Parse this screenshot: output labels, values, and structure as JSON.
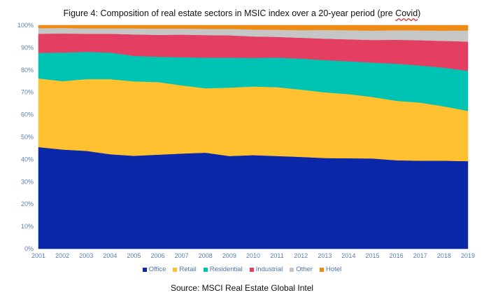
{
  "chart_data": {
    "type": "area",
    "stacked": true,
    "normalized": true,
    "title": "Figure 4: Composition of real estate sectors in MSIC index over a 20-year period (pre Covid)",
    "title_prefix": "Figure 4: Composition of real estate sectors in MSIC index over a 20-year period (pre ",
    "title_underlined": "Covid",
    "title_suffix": ")",
    "xlabel": "",
    "ylabel": "",
    "ylim": [
      0,
      100
    ],
    "y_ticks": [
      "0%",
      "10%",
      "20%",
      "30%",
      "40%",
      "50%",
      "60%",
      "70%",
      "80%",
      "90%",
      "100%"
    ],
    "x": [
      "2001",
      "2002",
      "2003",
      "2004",
      "2005",
      "2006",
      "2007",
      "2008",
      "2009",
      "2010",
      "2011",
      "2012",
      "2013",
      "2014",
      "2015",
      "2016",
      "2017",
      "2018",
      "2019"
    ],
    "grid": false,
    "legend_position": "bottom",
    "series": [
      {
        "name": "Office",
        "color": "#0a28a8",
        "values": [
          45.5,
          44.4,
          43.8,
          42.3,
          41.6,
          42.1,
          42.6,
          43.0,
          41.5,
          41.9,
          41.5,
          41.1,
          40.6,
          40.5,
          40.4,
          39.6,
          39.4,
          39.4,
          39.2
        ]
      },
      {
        "name": "Retail",
        "color": "#ffc12f",
        "values": [
          30.7,
          30.6,
          32.1,
          33.6,
          33.3,
          32.5,
          30.5,
          28.8,
          30.6,
          30.7,
          30.8,
          30.1,
          29.4,
          28.7,
          27.5,
          26.6,
          26.0,
          24.3,
          22.5
        ]
      },
      {
        "name": "Residential",
        "color": "#00c4b3",
        "values": [
          11.5,
          12.8,
          12.2,
          11.9,
          11.4,
          11.3,
          12.6,
          13.7,
          13.4,
          12.8,
          13.2,
          13.9,
          14.4,
          14.7,
          15.4,
          16.6,
          16.6,
          17.3,
          17.9
        ]
      },
      {
        "name": "Industrial",
        "color": "#e43f62",
        "values": [
          8.5,
          8.5,
          8.1,
          8.4,
          9.6,
          9.8,
          10.1,
          10.1,
          10.0,
          9.6,
          9.3,
          9.3,
          9.6,
          9.8,
          10.1,
          10.7,
          11.3,
          12.0,
          13.1
        ]
      },
      {
        "name": "Other",
        "color": "#c6c6c6",
        "values": [
          2.5,
          2.5,
          2.4,
          2.4,
          2.7,
          2.8,
          2.7,
          2.8,
          2.9,
          3.1,
          3.2,
          3.4,
          3.9,
          4.1,
          4.2,
          4.3,
          4.4,
          4.6,
          5.0
        ]
      },
      {
        "name": "Hotel",
        "color": "#ef8b12",
        "values": [
          1.3,
          1.2,
          1.4,
          1.4,
          1.4,
          1.5,
          1.5,
          1.6,
          1.6,
          1.9,
          2.0,
          2.2,
          2.1,
          2.2,
          2.4,
          2.2,
          2.3,
          2.4,
          2.3
        ]
      }
    ]
  },
  "source_text": "Source: MSCI Real Estate Global Intel"
}
